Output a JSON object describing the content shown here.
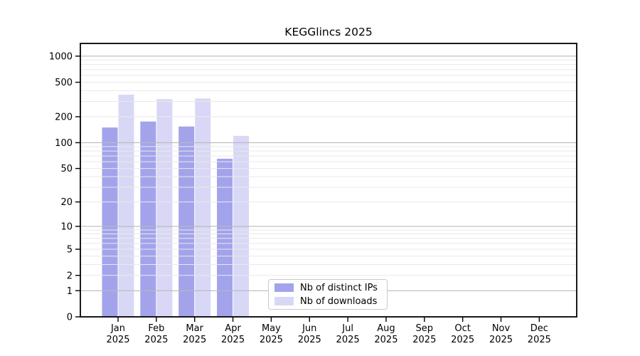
{
  "chart_data": {
    "type": "bar",
    "title": "KEGGlincs 2025",
    "year_label": "2025",
    "categories": [
      "Jan",
      "Feb",
      "Mar",
      "Apr",
      "May",
      "Jun",
      "Jul",
      "Aug",
      "Sep",
      "Oct",
      "Nov",
      "Dec"
    ],
    "series": [
      {
        "name": "Nb of distinct IPs",
        "color": "#a3a3ec",
        "values": [
          150,
          176,
          154,
          65,
          null,
          null,
          null,
          null,
          null,
          null,
          null,
          null
        ]
      },
      {
        "name": "Nb of downloads",
        "color": "#d8d8f6",
        "values": [
          360,
          320,
          325,
          120,
          null,
          null,
          null,
          null,
          null,
          null,
          null,
          null
        ]
      }
    ],
    "y_scale": "log1p",
    "ylim": [
      0,
      1000
    ],
    "y_ticks": [
      0,
      1,
      2,
      5,
      10,
      20,
      50,
      100,
      200,
      500,
      1000
    ],
    "grid": {
      "major_lines": [
        1,
        10,
        100,
        1000
      ],
      "minor_lines": [
        2,
        3,
        4,
        5,
        6,
        7,
        8,
        9,
        20,
        30,
        40,
        50,
        60,
        70,
        80,
        90,
        200,
        300,
        400,
        500,
        600,
        700,
        800,
        900
      ],
      "major_color": "#b9b9b9",
      "minor_color": "#e9e9e9",
      "grid_above_bars": true
    },
    "axis_color": "#000000",
    "text_color": "#000000",
    "legend_position": "bottom-center"
  }
}
